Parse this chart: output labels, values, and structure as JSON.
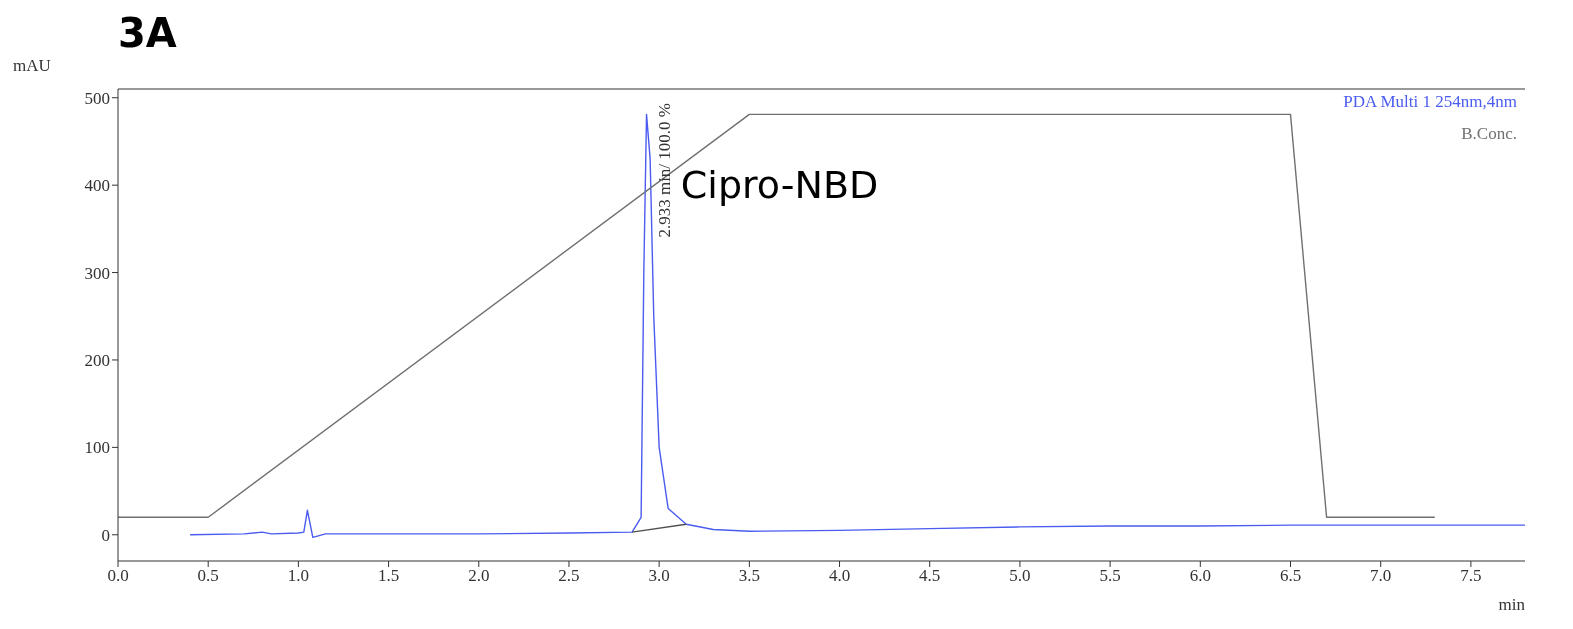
{
  "chart_data": {
    "type": "line",
    "title": "3A",
    "xlabel": "min",
    "ylabel": "mAU",
    "xlim": [
      0,
      7.8
    ],
    "xticks": [
      {
        "value": 0,
        "label": "0.0"
      },
      {
        "value": 0.5,
        "label": "0.5"
      },
      {
        "value": 1,
        "label": "1.0"
      },
      {
        "value": 1.5,
        "label": "1.5"
      },
      {
        "value": 2,
        "label": "2.0"
      },
      {
        "value": 2.5,
        "label": "2.5"
      },
      {
        "value": 3,
        "label": "3.0"
      },
      {
        "value": 3.5,
        "label": "3.5"
      },
      {
        "value": 4,
        "label": "4.0"
      },
      {
        "value": 4.5,
        "label": "4.5"
      },
      {
        "value": 5,
        "label": "5.0"
      },
      {
        "value": 5.5,
        "label": "5.5"
      },
      {
        "value": 6,
        "label": "6.0"
      },
      {
        "value": 6.5,
        "label": "6.5"
      },
      {
        "value": 7,
        "label": "7.0"
      },
      {
        "value": 7.5,
        "label": "7.5"
      }
    ],
    "ylim": [
      -30,
      510
    ],
    "yticks": [
      0,
      100,
      200,
      300,
      400,
      500
    ],
    "marker": "none",
    "line_style": "solid",
    "series": [
      {
        "name": "PDA Multi 1 254nm,4nm",
        "color": "#4a5cf0",
        "x": [
          0.4,
          0.7,
          0.8,
          0.85,
          1.0,
          1.03,
          1.05,
          1.08,
          1.15,
          1.5,
          2.0,
          2.5,
          2.85,
          2.9,
          2.915,
          2.93,
          2.95,
          2.97,
          3.0,
          3.05,
          3.15,
          3.3,
          3.5,
          4.0,
          4.5,
          5.0,
          5.5,
          6.0,
          6.5,
          7.0,
          7.5,
          7.8
        ],
        "values": [
          0,
          1,
          3,
          1,
          2,
          3,
          28,
          -3,
          1,
          1,
          1,
          2,
          3,
          20,
          300,
          481,
          430,
          250,
          100,
          30,
          12,
          6,
          4,
          5,
          7,
          9,
          10,
          10,
          11,
          11,
          11,
          11
        ]
      },
      {
        "name": "B.Conc.",
        "color": "#707070",
        "x": [
          0,
          0.5,
          3.5,
          6.5,
          6.7,
          7.3
        ],
        "values": [
          20,
          20,
          481,
          481,
          20,
          20
        ]
      },
      {
        "color": "#505050",
        "x": [
          2.85,
          3.15
        ],
        "values": [
          3,
          12
        ]
      }
    ],
    "annotations": [
      {
        "text": "2.933 min/ 100.0 %",
        "x": 2.933,
        "y": 481
      },
      "Cipro-NBD"
    ]
  }
}
